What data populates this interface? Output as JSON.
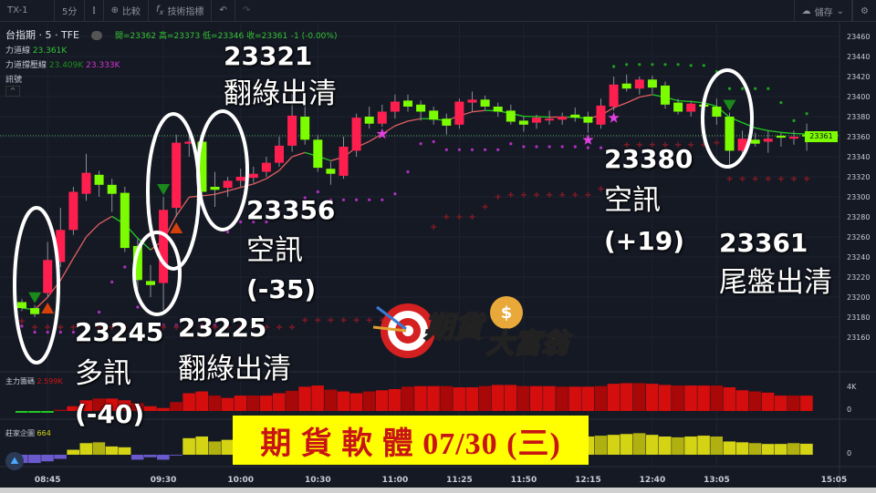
{
  "toolbar": {
    "symbol": "TX-1",
    "interval": "5分",
    "compare": "比較",
    "indicators": "技術指標",
    "save": "儲存"
  },
  "header": {
    "title": "台指期 · 5 · TFE",
    "ohlc": "開=23362 高=23373 低=23346 收=23361",
    "change": "-1 (-0.00%)",
    "line1_label": "力道線",
    "line1_value": "23.361K",
    "line2_label": "力道撐壓線",
    "line2_value_a": "23.409K",
    "line2_value_b": "23.333K",
    "line3_label": "訊號"
  },
  "annotations": {
    "a1_num": "23321",
    "a1_text": "翻綠出清",
    "a2_num": "23356",
    "a2_text": "空訊",
    "a2_pts": "(-35)",
    "a3_num": "23245",
    "a3_text": "多訊",
    "a3_pts": "(-40)",
    "a4_num": "23225",
    "a4_text": "翻綠出清",
    "a5_num": "23380",
    "a5_text": "空訊",
    "a5_pts": "(+19)",
    "a6_num": "23361",
    "a6_text": "尾盤出清"
  },
  "banner": "期 貨 軟 體 07/30 (三)",
  "logo_text": "期貨大富翁",
  "panels": {
    "main_force_label": "主力籌碼",
    "main_force_value": "2.599K",
    "intent_label": "莊家企圖",
    "intent_value": "664",
    "mf_axis_top": "4K",
    "mf_axis_zero": "0",
    "intent_axis_zero": "0"
  },
  "colors": {
    "up": "#ff1f4f",
    "down": "#7cfc00",
    "mf_up": "#d40d0d",
    "mf_down": "#22cc22",
    "intent_up": "#d4d414",
    "intent_down": "#6a5acd",
    "last_price": "#7cfc00"
  },
  "chart_data": {
    "type": "candlestick",
    "ylim": [
      23150,
      23470
    ],
    "yticks": [
      23460,
      23440,
      23420,
      23400,
      23380,
      23360,
      23340,
      23320,
      23300,
      23280,
      23260,
      23240,
      23220,
      23200,
      23180,
      23160
    ],
    "last_price": "23361",
    "time_labels": [
      {
        "t": "08:45",
        "i": 2
      },
      {
        "t": "09:30",
        "i": 11
      },
      {
        "t": "10:00",
        "i": 17
      },
      {
        "t": "10:30",
        "i": 23
      },
      {
        "t": "11:00",
        "i": 29
      },
      {
        "t": "11:25",
        "i": 34
      },
      {
        "t": "11:50",
        "i": 39
      },
      {
        "t": "12:15",
        "i": 44
      },
      {
        "t": "12:40",
        "i": 49
      },
      {
        "t": "13:05",
        "i": 54
      }
    ],
    "end_time_label": "15:05",
    "candles_ohlc": [
      [
        23195,
        23198,
        23186,
        23189
      ],
      [
        23189,
        23192,
        23180,
        23183
      ],
      [
        23204,
        23255,
        23200,
        23237
      ],
      [
        23235,
        23289,
        23230,
        23267
      ],
      [
        23267,
        23310,
        23262,
        23305
      ],
      [
        23303,
        23343,
        23296,
        23324
      ],
      [
        23322,
        23326,
        23300,
        23312
      ],
      [
        23312,
        23318,
        23285,
        23303
      ],
      [
        23304,
        23310,
        23245,
        23249
      ],
      [
        23251,
        23258,
        23205,
        23217
      ],
      [
        23216,
        23232,
        23200,
        23212
      ],
      [
        23214,
        23300,
        23187,
        23287
      ],
      [
        23289,
        23362,
        23280,
        23354
      ],
      [
        23353,
        23370,
        23340,
        23355
      ],
      [
        23355,
        23358,
        23300,
        23305
      ],
      [
        23310,
        23325,
        23290,
        23307
      ],
      [
        23309,
        23320,
        23300,
        23316
      ],
      [
        23316,
        23328,
        23310,
        23320
      ],
      [
        23319,
        23330,
        23314,
        23323
      ],
      [
        23325,
        23340,
        23320,
        23334
      ],
      [
        23334,
        23360,
        23330,
        23351
      ],
      [
        23351,
        23403,
        23345,
        23381
      ],
      [
        23380,
        23392,
        23352,
        23357
      ],
      [
        23357,
        23362,
        23325,
        23329
      ],
      [
        23328,
        23335,
        23312,
        23323
      ],
      [
        23321,
        23360,
        23318,
        23350
      ],
      [
        23346,
        23383,
        23340,
        23379
      ],
      [
        23380,
        23390,
        23368,
        23373
      ],
      [
        23373,
        23392,
        23370,
        23385
      ],
      [
        23385,
        23402,
        23378,
        23395
      ],
      [
        23396,
        23402,
        23385,
        23390
      ],
      [
        23392,
        23396,
        23376,
        23385
      ],
      [
        23386,
        23390,
        23372,
        23377
      ],
      [
        23378,
        23383,
        23362,
        23371
      ],
      [
        23372,
        23398,
        23368,
        23395
      ],
      [
        23394,
        23405,
        23385,
        23397
      ],
      [
        23397,
        23401,
        23386,
        23390
      ],
      [
        23390,
        23394,
        23380,
        23385
      ],
      [
        23386,
        23392,
        23372,
        23375
      ],
      [
        23376,
        23380,
        23365,
        23372
      ],
      [
        23374,
        23382,
        23368,
        23379
      ],
      [
        23377,
        23386,
        23372,
        23378
      ],
      [
        23377,
        23384,
        23372,
        23380
      ],
      [
        23382,
        23389,
        23375,
        23379
      ],
      [
        23380,
        23385,
        23364,
        23374
      ],
      [
        23372,
        23398,
        23368,
        23391
      ],
      [
        23390,
        23420,
        23386,
        23412
      ],
      [
        23413,
        23422,
        23405,
        23408
      ],
      [
        23408,
        23420,
        23402,
        23417
      ],
      [
        23417,
        23421,
        23403,
        23409
      ],
      [
        23411,
        23415,
        23388,
        23392
      ],
      [
        23394,
        23398,
        23382,
        23385
      ],
      [
        23385,
        23396,
        23380,
        23393
      ],
      [
        23392,
        23396,
        23386,
        23390
      ],
      [
        23390,
        23398,
        23372,
        23380
      ],
      [
        23380,
        23384,
        23328,
        23346
      ],
      [
        23346,
        23366,
        23340,
        23358
      ],
      [
        23357,
        23364,
        23350,
        23353
      ],
      [
        23355,
        23366,
        23344,
        23358
      ],
      [
        23361,
        23364,
        23350,
        23359
      ],
      [
        23358,
        23366,
        23352,
        23360
      ],
      [
        23362,
        23373,
        23346,
        23361
      ]
    ],
    "signals": [
      {
        "type": "sell",
        "i": 1
      },
      {
        "type": "buy",
        "i": 2
      },
      {
        "type": "sell",
        "i": 11
      },
      {
        "type": "buy",
        "i": 12
      },
      {
        "type": "sell",
        "i": 55
      }
    ],
    "stars": [
      28,
      44,
      46
    ],
    "main_force_k": [
      -0.3,
      -0.3,
      -0.3,
      0.2,
      0.8,
      1.8,
      2.1,
      2.1,
      1.8,
      1.3,
      0.8,
      0.5,
      1.5,
      3.0,
      3.3,
      2.6,
      2.2,
      2.6,
      2.6,
      2.6,
      3.0,
      3.4,
      4.1,
      4.3,
      3.6,
      3.3,
      3.0,
      3.3,
      3.5,
      3.7,
      4.1,
      4.2,
      4.2,
      4.2,
      4.0,
      4.0,
      4.2,
      4.4,
      4.4,
      4.2,
      4.2,
      4.2,
      4.1,
      4.1,
      4.1,
      4.2,
      4.6,
      4.7,
      4.7,
      4.6,
      4.4,
      4.3,
      4.3,
      4.3,
      4.3,
      4.0,
      3.5,
      3.3,
      3.1,
      2.6,
      2.6,
      2.6
    ],
    "intent": [
      -500,
      -500,
      -400,
      -250,
      300,
      700,
      750,
      500,
      450,
      -300,
      -150,
      -300,
      -50,
      1000,
      1100,
      800,
      900,
      900,
      850,
      800,
      850,
      900,
      950,
      950,
      900,
      900,
      900,
      950,
      1000,
      1000,
      950,
      900,
      900,
      950,
      1000,
      1000,
      950,
      950,
      950,
      950,
      1000,
      1000,
      1050,
      1100,
      1100,
      1150,
      1200,
      1250,
      1300,
      1200,
      1100,
      1050,
      1100,
      1150,
      1100,
      800,
      750,
      700,
      650,
      650,
      700,
      664
    ]
  }
}
